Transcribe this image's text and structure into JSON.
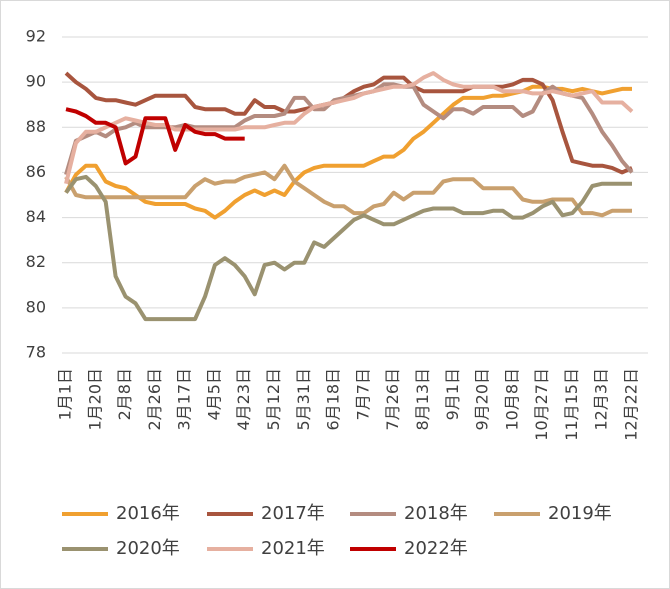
{
  "chart_data": {
    "type": "line",
    "categories": [
      "1月1日",
      null,
      null,
      "1月20日",
      null,
      null,
      "2月8日",
      null,
      null,
      "2月26日",
      null,
      null,
      "3月17日",
      null,
      null,
      "4月5日",
      null,
      null,
      "4月23日",
      null,
      null,
      "5月12日",
      null,
      null,
      "5月31日",
      null,
      null,
      "6月18日",
      null,
      null,
      "7月7日",
      null,
      null,
      "7月26日",
      null,
      null,
      "8月13日",
      null,
      null,
      "9月1日",
      null,
      null,
      "9月20日",
      null,
      null,
      "10月8日",
      null,
      null,
      "10月27日",
      null,
      null,
      "11月15日",
      null,
      null,
      "12月3日",
      null,
      null,
      "12月22日"
    ],
    "series": [
      {
        "name": "2016年",
        "color": "#f0a030",
        "values": [
          85.1,
          85.9,
          86.3,
          86.3,
          85.6,
          85.4,
          85.3,
          85.0,
          84.7,
          84.6,
          84.6,
          84.6,
          84.6,
          84.4,
          84.3,
          84.0,
          84.3,
          84.7,
          85.0,
          85.2,
          85.0,
          85.2,
          85.0,
          85.6,
          86.0,
          86.2,
          86.3,
          86.3,
          86.3,
          86.3,
          86.3,
          86.5,
          86.7,
          86.7,
          87.0,
          87.5,
          87.8,
          88.2,
          88.6,
          89.0,
          89.3,
          89.3,
          89.3,
          89.4,
          89.4,
          89.5,
          89.6,
          89.8,
          89.8,
          89.7,
          89.7,
          89.6,
          89.7,
          89.6,
          89.5,
          89.6,
          89.7,
          89.7
        ]
      },
      {
        "name": "2017年",
        "color": "#a8553e",
        "values": [
          90.4,
          90.0,
          89.7,
          89.3,
          89.2,
          89.2,
          89.1,
          89.0,
          89.2,
          89.4,
          89.4,
          89.4,
          89.4,
          88.9,
          88.8,
          88.8,
          88.8,
          88.6,
          88.6,
          89.2,
          88.9,
          88.9,
          88.7,
          88.7,
          88.8,
          88.9,
          89.0,
          89.1,
          89.3,
          89.6,
          89.8,
          89.9,
          90.2,
          90.2,
          90.2,
          89.8,
          89.6,
          89.6,
          89.6,
          89.6,
          89.6,
          89.8,
          89.8,
          89.8,
          89.8,
          89.9,
          90.1,
          90.1,
          89.9,
          89.2,
          87.8,
          86.5,
          86.4,
          86.3,
          86.3,
          86.2,
          86.0,
          86.2
        ]
      },
      {
        "name": "2018年",
        "color": "#b48c80",
        "values": [
          85.9,
          87.4,
          87.6,
          87.8,
          87.6,
          87.9,
          88.0,
          88.2,
          88.0,
          88.0,
          88.0,
          88.0,
          88.1,
          88.0,
          88.0,
          88.0,
          88.0,
          88.0,
          88.3,
          88.5,
          88.5,
          88.5,
          88.6,
          89.3,
          89.3,
          88.8,
          88.8,
          89.2,
          89.3,
          89.4,
          89.5,
          89.6,
          89.9,
          89.9,
          89.8,
          89.8,
          89.0,
          88.7,
          88.4,
          88.8,
          88.8,
          88.6,
          88.9,
          88.9,
          88.9,
          88.9,
          88.5,
          88.7,
          89.5,
          89.8,
          89.5,
          89.4,
          89.3,
          88.6,
          87.8,
          87.2,
          86.5,
          86.0
        ]
      },
      {
        "name": "2019年",
        "color": "#c9a06e",
        "values": [
          85.8,
          85.0,
          84.9,
          84.9,
          84.9,
          84.9,
          84.9,
          84.9,
          84.9,
          84.9,
          84.9,
          84.9,
          84.9,
          85.4,
          85.7,
          85.5,
          85.6,
          85.6,
          85.8,
          85.9,
          86.0,
          85.7,
          86.3,
          85.6,
          85.3,
          85.0,
          84.7,
          84.5,
          84.5,
          84.2,
          84.2,
          84.5,
          84.6,
          85.1,
          84.8,
          85.1,
          85.1,
          85.1,
          85.6,
          85.7,
          85.7,
          85.7,
          85.3,
          85.3,
          85.3,
          85.3,
          84.8,
          84.7,
          84.7,
          84.8,
          84.8,
          84.8,
          84.2,
          84.2,
          84.1,
          84.3,
          84.3,
          84.3
        ]
      },
      {
        "name": "2020年",
        "color": "#9a9270",
        "values": [
          85.1,
          85.7,
          85.8,
          85.4,
          84.7,
          81.4,
          80.5,
          80.2,
          79.5,
          79.5,
          79.5,
          79.5,
          79.5,
          79.5,
          80.5,
          81.9,
          82.2,
          81.9,
          81.4,
          80.6,
          81.9,
          82.0,
          81.7,
          82.0,
          82.0,
          82.9,
          82.7,
          83.1,
          83.5,
          83.9,
          84.1,
          83.9,
          83.7,
          83.7,
          83.9,
          84.1,
          84.3,
          84.4,
          84.4,
          84.4,
          84.2,
          84.2,
          84.2,
          84.3,
          84.3,
          84.0,
          84.0,
          84.2,
          84.5,
          84.7,
          84.1,
          84.2,
          84.7,
          85.4,
          85.5,
          85.5,
          85.5,
          85.5
        ]
      },
      {
        "name": "2021年",
        "color": "#e6b0a0",
        "values": [
          85.5,
          87.3,
          87.8,
          87.8,
          88.0,
          88.2,
          88.4,
          88.3,
          88.2,
          88.1,
          88.1,
          87.9,
          87.9,
          87.9,
          87.9,
          87.9,
          87.9,
          87.9,
          88.0,
          88.0,
          88.0,
          88.1,
          88.2,
          88.2,
          88.6,
          88.9,
          89.0,
          89.1,
          89.2,
          89.3,
          89.5,
          89.6,
          89.7,
          89.8,
          89.8,
          89.9,
          90.2,
          90.4,
          90.1,
          89.9,
          89.8,
          89.8,
          89.8,
          89.8,
          89.6,
          89.6,
          89.6,
          89.5,
          89.5,
          89.6,
          89.5,
          89.4,
          89.5,
          89.6,
          89.1,
          89.1,
          89.1,
          88.7
        ]
      },
      {
        "name": "2022年",
        "color": "#c00000",
        "values": [
          88.8,
          88.7,
          88.5,
          88.2,
          88.2,
          88.0,
          86.4,
          86.7,
          88.4,
          88.4,
          88.4,
          87.0,
          88.1,
          87.8,
          87.7,
          87.7,
          87.5,
          87.5,
          87.5,
          null,
          null,
          null,
          null,
          null,
          null,
          null,
          null,
          null,
          null,
          null,
          null,
          null,
          null,
          null,
          null,
          null,
          null,
          null,
          null,
          null,
          null,
          null,
          null,
          null,
          null,
          null,
          null,
          null,
          null,
          null,
          null,
          null,
          null,
          null,
          null,
          null,
          null,
          null
        ]
      }
    ],
    "ylim": [
      78,
      92
    ],
    "yticks": [
      78,
      80,
      82,
      84,
      86,
      88,
      90,
      92
    ],
    "grid": true
  }
}
